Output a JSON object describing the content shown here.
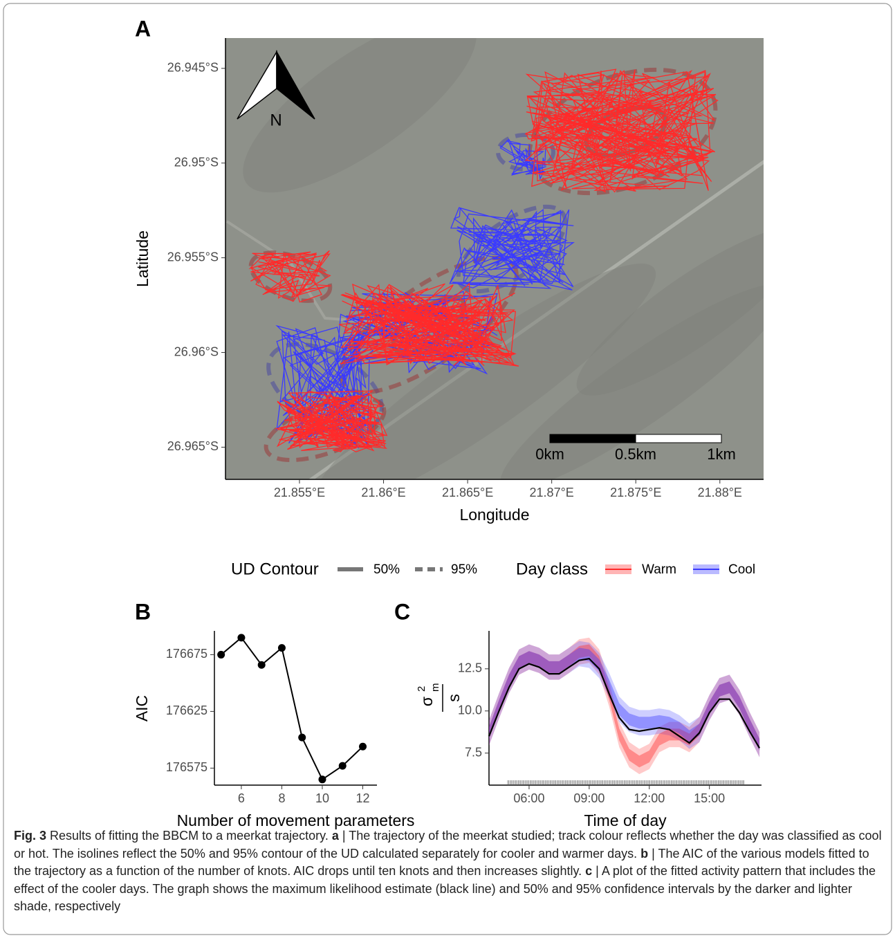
{
  "chart_data": [
    {
      "type": "map",
      "panel_label": "A",
      "xlabel": "Longitude",
      "ylabel": "Latitude",
      "xlim": [
        21.8506,
        21.8826
      ],
      "ylim": [
        -26.9667,
        -26.9434
      ],
      "xticks": [
        {
          "value": 21.855,
          "label": "21.855°E"
        },
        {
          "value": 21.86,
          "label": "21.86°E"
        },
        {
          "value": 21.865,
          "label": "21.865°E"
        },
        {
          "value": 21.87,
          "label": "21.87°E"
        },
        {
          "value": 21.875,
          "label": "21.875°E"
        },
        {
          "value": 21.88,
          "label": "21.88°E"
        }
      ],
      "yticks": [
        {
          "value": -26.945,
          "label": "26.945°S"
        },
        {
          "value": -26.95,
          "label": "26.95°S"
        },
        {
          "value": -26.955,
          "label": "26.955°S"
        },
        {
          "value": -26.96,
          "label": "26.96°S"
        },
        {
          "value": -26.965,
          "label": "26.965°S"
        }
      ],
      "north_label": "N",
      "scale_bar_labels": [
        "0km",
        "0.5km",
        "1km"
      ]
    },
    {
      "type": "line",
      "panel_label": "B",
      "xlabel": "Number of movement parameters",
      "ylabel": "AIC",
      "x": [
        5,
        6,
        7,
        8,
        9,
        10,
        11,
        12
      ],
      "values": [
        176675,
        176690,
        176666,
        176681,
        176602,
        176565,
        176577,
        176594
      ],
      "color": "#000000",
      "xlim": [
        4.67,
        12.7
      ],
      "ylim": [
        176560,
        176696
      ],
      "xticks": [
        6,
        8,
        10,
        12
      ],
      "yticks": [
        176575,
        176625,
        176675
      ]
    },
    {
      "type": "band-line",
      "panel_label": "C",
      "xlabel": "Time of day",
      "ylabel": {
        "symbol": "σ",
        "sup": "2",
        "sub": "m",
        "denominator": "s"
      },
      "x": [
        4,
        4.5,
        5,
        5.5,
        6,
        6.5,
        7,
        7.5,
        8,
        8.5,
        9,
        9.5,
        10,
        10.5,
        11,
        11.5,
        12,
        12.5,
        13,
        13.5,
        14,
        14.5,
        15,
        15.5,
        16,
        16.5,
        17,
        17.5
      ],
      "series": [
        {
          "name": "Warm",
          "color": "#ff2a2a",
          "ci50": 0.35,
          "ci95": 0.75,
          "values": [
            8.7,
            10.3,
            11.8,
            12.9,
            13.2,
            13.0,
            12.6,
            12.6,
            13.0,
            13.5,
            13.6,
            12.9,
            11.0,
            8.6,
            7.4,
            7.0,
            7.3,
            8.3,
            8.6,
            8.6,
            8.3,
            8.9,
            10.2,
            11.2,
            11.4,
            10.5,
            9.2,
            8.0
          ]
        },
        {
          "name": "Cool",
          "color": "#3a3aff",
          "ci50": 0.35,
          "ci95": 0.75,
          "values": [
            8.7,
            10.3,
            11.8,
            12.9,
            13.2,
            13.0,
            12.6,
            12.6,
            13.0,
            13.4,
            13.3,
            12.7,
            11.5,
            10.1,
            9.5,
            9.3,
            9.3,
            9.4,
            9.3,
            9.0,
            8.5,
            8.9,
            10.2,
            11.2,
            11.4,
            10.5,
            9.2,
            8.0
          ]
        },
        {
          "color": "#000000",
          "values": [
            8.5,
            10.0,
            11.4,
            12.5,
            12.8,
            12.6,
            12.2,
            12.2,
            12.6,
            13.0,
            13.1,
            12.5,
            11.0,
            9.6,
            8.9,
            8.8,
            8.9,
            9.0,
            8.9,
            8.5,
            8.1,
            8.7,
            9.9,
            10.7,
            10.7,
            9.9,
            8.8,
            7.8
          ]
        }
      ],
      "xlim": [
        4,
        17.6
      ],
      "ylim": [
        5.6,
        14.75
      ],
      "xticks": [
        {
          "value": 6,
          "label": "06:00"
        },
        {
          "value": 9,
          "label": "09:00"
        },
        {
          "value": 12,
          "label": "12:00"
        },
        {
          "value": 15,
          "label": "15:00"
        }
      ],
      "yticks": [
        7.5,
        {
          "value": 10,
          "label": "10.0"
        },
        12.5
      ]
    }
  ],
  "legend": {
    "ud_title": "UD Contour",
    "ud_items": [
      "50%",
      "95%"
    ],
    "day_title": "Day class"
  },
  "caption": [
    "Fig. 3",
    " Results of fitting the BBCM to a meerkat trajectory. ",
    "a",
    " | The trajectory of the meerkat studied; track colour reflects whether the day was classified as cool or hot. The isolines reflect the 50% and 95% contour of the UD calculated separately for cooler and warmer days. ",
    "b",
    " | The AIC of the various models fitted to the trajectory as a function of the number of knots. AIC drops until ten knots and then increases slightly. ",
    "c",
    " | A plot of the fitted activity pattern that includes the effect of the cooler days. The graph shows the maximum likelihood estimate (black line) and 50% and 95% confidence intervals by the darker and lighter shade, respectively"
  ]
}
